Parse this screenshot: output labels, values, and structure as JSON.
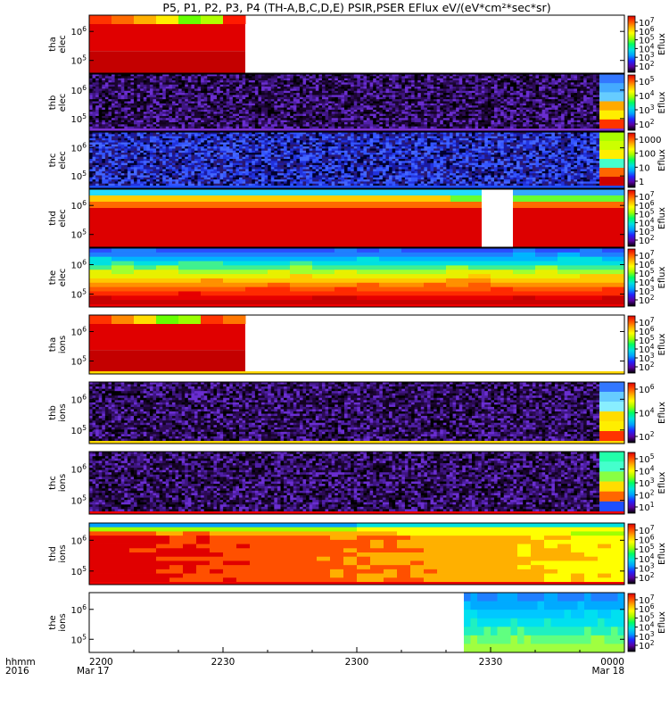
{
  "chart_data": {
    "type": "heatmap",
    "title": "P5, P1, P2, P3, P4 (TH-A,B,C,D,E) PSIR,PSER EFlux eV/(eV*cm²*sec*sr)",
    "colormap": "rainbow (black-purple-blue-cyan-green-yellow-orange-red)",
    "x_axis": {
      "start": "2016-03-17 22:00",
      "end": "2016-03-18 00:00",
      "tick_labels": [
        "2200",
        "2230",
        "2300",
        "2330",
        "0000"
      ],
      "tick_minutes": [
        0,
        30,
        60,
        90,
        120
      ],
      "range_minutes": [
        0,
        120
      ],
      "date_labels": [
        "Mar 17",
        "Mar 18"
      ],
      "corner_labels": [
        "hhmm",
        "2016"
      ]
    },
    "panels": [
      {
        "ylabel": [
          "tha",
          "elec"
        ],
        "ytick_labels": [
          "10",
          "10"
        ],
        "ytick_exponents": [
          "6",
          "5"
        ],
        "cbar_label": "Eflux",
        "cbar_ticks": [
          {
            "base": "10",
            "exp": "7"
          },
          {
            "base": "10",
            "exp": "6"
          },
          {
            "base": "10",
            "exp": "5"
          },
          {
            "base": "10",
            "exp": "4"
          },
          {
            "base": "10",
            "exp": "3"
          },
          {
            "base": "10",
            "exp": "2"
          }
        ],
        "data_end_minute": 35,
        "top_band": [
          "#ff3300",
          "#ff6a00",
          "#ffb000",
          "#ffee00",
          "#66ff00",
          "#b0ff00",
          "#ff1a00"
        ],
        "bulk_color": "#e00000",
        "lower_color": "#c40000",
        "bottom_stripe": []
      },
      {
        "ylabel": [
          "thb",
          "elec"
        ],
        "ytick_labels": [
          "10",
          "10"
        ],
        "ytick_exponents": [
          "6",
          "5"
        ],
        "cbar_label": "Eflux",
        "cbar_ticks": [
          {
            "base": "10",
            "exp": "5"
          },
          {
            "base": "10",
            "exp": "4"
          },
          {
            "base": "10",
            "exp": "3"
          },
          {
            "base": "10",
            "exp": "2"
          }
        ],
        "texture": "purple",
        "end_column": [
          "#3377ff",
          "#44aaff",
          "#66ccff",
          "#ffaa00",
          "#ffee00",
          "#ff3300"
        ],
        "bottom_stripe": [
          "#7a2fd0"
        ]
      },
      {
        "ylabel": [
          "thc",
          "elec"
        ],
        "ytick_labels": [
          "10",
          "10"
        ],
        "ytick_exponents": [
          "6",
          "5"
        ],
        "cbar_label": "Eflux",
        "cbar_ticks": [
          {
            "base": "1000",
            "exp": ""
          },
          {
            "base": "100",
            "exp": ""
          },
          {
            "base": "10",
            "exp": ""
          },
          {
            "base": "1",
            "exp": ""
          }
        ],
        "texture": "blue",
        "end_column": [
          "#aaff00",
          "#ccff00",
          "#ffee00",
          "#44ffcc",
          "#ff6600",
          "#cc0000"
        ],
        "bottom_stripe": [
          "#1e4fff"
        ]
      },
      {
        "ylabel": [
          "thd",
          "elec"
        ],
        "ytick_labels": [
          "10",
          "10"
        ],
        "ytick_exponents": [
          "6",
          "5"
        ],
        "cbar_label": "Eflux",
        "cbar_ticks": [
          {
            "base": "10",
            "exp": "7"
          },
          {
            "base": "10",
            "exp": "6"
          },
          {
            "base": "10",
            "exp": "5"
          },
          {
            "base": "10",
            "exp": "4"
          },
          {
            "base": "10",
            "exp": "3"
          },
          {
            "base": "10",
            "exp": "2"
          }
        ],
        "gap_minutes": [
          88,
          95
        ],
        "rows_top": [
          "#22ddff",
          "#ffcc00",
          "#ff6a00"
        ],
        "bulk_color": "#dd0000",
        "bottom_stripe": []
      },
      {
        "ylabel": [
          "the",
          "elec"
        ],
        "ytick_labels": [
          "10",
          "10"
        ],
        "ytick_exponents": [
          "6",
          "5"
        ],
        "cbar_label": "Eflux",
        "cbar_ticks": [
          {
            "base": "10",
            "exp": "7"
          },
          {
            "base": "10",
            "exp": "6"
          },
          {
            "base": "10",
            "exp": "5"
          },
          {
            "base": "10",
            "exp": "4"
          },
          {
            "base": "10",
            "exp": "3"
          },
          {
            "base": "10",
            "exp": "2"
          }
        ],
        "gradient_rows": [
          "#2a4dff",
          "#1f7fff",
          "#00b4ff",
          "#00e0e0",
          "#40f090",
          "#a0ff30",
          "#e8f000",
          "#ffc800",
          "#ff9000",
          "#ff5a00",
          "#ff2a00",
          "#e60000",
          "#c80000"
        ],
        "bottom_stripe": [
          "#ee0000"
        ]
      },
      {
        "ylabel": [
          "tha",
          "ions"
        ],
        "ytick_labels": [
          "10",
          "10"
        ],
        "ytick_exponents": [
          "6",
          "5"
        ],
        "cbar_label": "Eflux",
        "cbar_ticks": [
          {
            "base": "10",
            "exp": "7"
          },
          {
            "base": "10",
            "exp": "6"
          },
          {
            "base": "10",
            "exp": "5"
          },
          {
            "base": "10",
            "exp": "4"
          },
          {
            "base": "10",
            "exp": "3"
          },
          {
            "base": "10",
            "exp": "2"
          }
        ],
        "data_end_minute": 35,
        "top_band": [
          "#ff3300",
          "#ff8800",
          "#ffdd00",
          "#66ff00",
          "#99ff00",
          "#ff3300",
          "#ff7700"
        ],
        "bulk_color": "#e00000",
        "lower_color": "#c40000",
        "bottom_stripe": [
          "#ffd800"
        ]
      },
      {
        "ylabel": [
          "thb",
          "ions"
        ],
        "ytick_labels": [
          "10",
          "10"
        ],
        "ytick_exponents": [
          "6",
          "5"
        ],
        "cbar_label": "Eflux",
        "cbar_ticks": [
          {
            "base": "10",
            "exp": "6"
          },
          {
            "base": "10",
            "exp": "4"
          },
          {
            "base": "10",
            "exp": "2"
          }
        ],
        "texture": "purple",
        "end_column": [
          "#3377ff",
          "#66ccff",
          "#88eeff",
          "#ffdd00",
          "#ffee00",
          "#ff3300"
        ],
        "bottom_stripe": [
          "#ffd800"
        ]
      },
      {
        "ylabel": [
          "thc",
          "ions"
        ],
        "ytick_labels": [
          "10",
          "10"
        ],
        "ytick_exponents": [
          "6",
          "5"
        ],
        "cbar_label": "Eflux",
        "cbar_ticks": [
          {
            "base": "10",
            "exp": "5"
          },
          {
            "base": "10",
            "exp": "4"
          },
          {
            "base": "10",
            "exp": "3"
          },
          {
            "base": "10",
            "exp": "2"
          },
          {
            "base": "10",
            "exp": "1"
          }
        ],
        "texture": "purple",
        "end_column": [
          "#22ffaa",
          "#44ffcc",
          "#88ff44",
          "#ffdd00",
          "#ff6600",
          "#1e4fff"
        ],
        "bottom_stripe": [
          "#ee0000"
        ]
      },
      {
        "ylabel": [
          "thd",
          "ions"
        ],
        "ytick_labels": [
          "10",
          "10"
        ],
        "ytick_exponents": [
          "6",
          "5"
        ],
        "cbar_label": "Eflux",
        "cbar_ticks": [
          {
            "base": "10",
            "exp": "7"
          },
          {
            "base": "10",
            "exp": "6"
          },
          {
            "base": "10",
            "exp": "5"
          },
          {
            "base": "10",
            "exp": "4"
          },
          {
            "base": "10",
            "exp": "3"
          },
          {
            "base": "10",
            "exp": "2"
          }
        ],
        "ion_gradient": true,
        "bottom_stripe": [
          "#ee0000"
        ]
      },
      {
        "ylabel": [
          "the",
          "ions"
        ],
        "ytick_labels": [
          "10",
          "10"
        ],
        "ytick_exponents": [
          "6",
          "5"
        ],
        "cbar_label": "Eflux",
        "cbar_ticks": [
          {
            "base": "10",
            "exp": "7"
          },
          {
            "base": "10",
            "exp": "6"
          },
          {
            "base": "10",
            "exp": "5"
          },
          {
            "base": "10",
            "exp": "4"
          },
          {
            "base": "10",
            "exp": "3"
          },
          {
            "base": "10",
            "exp": "2"
          }
        ],
        "data_start_minute": 84,
        "gradient_rows": [
          "#1f7fff",
          "#00aaff",
          "#00c8ff",
          "#00e0f0",
          "#20f0c0",
          "#60ff80",
          "#a0ff40"
        ],
        "bottom_stripe": []
      }
    ]
  }
}
